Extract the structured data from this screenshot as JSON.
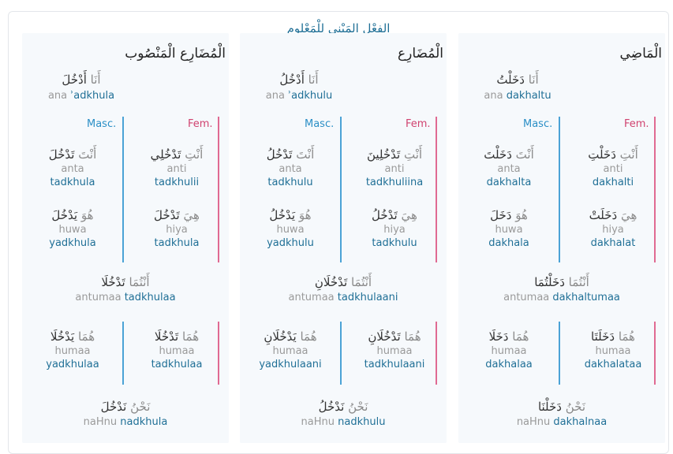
{
  "title": "الفِعْل المَبْنِي لِلْمَعْلوم",
  "labels": {
    "masc": "Masc.",
    "fem": "Fem."
  },
  "columns": [
    {
      "heading": "الْمَاضِي",
      "ana": {
        "pron_ar": "أَنَا",
        "verb_ar": "دَخَلْتُ",
        "pron_tr": "ana",
        "verb_tr": "dakhaltu"
      },
      "anta": {
        "pron_ar": "أَنْتَ",
        "verb_ar": "دَخَلْتَ",
        "pron_tr": "anta",
        "verb_tr": "dakhalta"
      },
      "anti": {
        "pron_ar": "أَنْتِ",
        "verb_ar": "دَخَلْتِ",
        "pron_tr": "anti",
        "verb_tr": "dakhalti"
      },
      "huwa": {
        "pron_ar": "هُوَ",
        "verb_ar": "دَخَلَ",
        "pron_tr": "huwa",
        "verb_tr": "dakhala"
      },
      "hiya": {
        "pron_ar": "هِيَ",
        "verb_ar": "دَخَلَتْ",
        "pron_tr": "hiya",
        "verb_tr": "dakhalat"
      },
      "antumaa": {
        "pron_ar": "أَنْتُمَا",
        "verb_ar": "دَخَلْتُمَا",
        "pron_tr": "antumaa",
        "verb_tr": "dakhaltumaa"
      },
      "humaa_m": {
        "pron_ar": "هُمَا",
        "verb_ar": "دَخَلَا",
        "pron_tr": "humaa",
        "verb_tr": "dakhalaa"
      },
      "humaa_f": {
        "pron_ar": "هُمَا",
        "verb_ar": "دَخَلَتَا",
        "pron_tr": "humaa",
        "verb_tr": "dakhalataa"
      },
      "nahnu": {
        "pron_ar": "نَحْنُ",
        "verb_ar": "دَخَلْنَا",
        "pron_tr": "naHnu",
        "verb_tr": "dakhalnaa"
      }
    },
    {
      "heading": "الْمُضَارِع",
      "ana": {
        "pron_ar": "أَنَا",
        "verb_ar": "أَدْخُلُ",
        "pron_tr": "ana",
        "verb_tr": "ʾadkhulu"
      },
      "anta": {
        "pron_ar": "أَنْتَ",
        "verb_ar": "تَدْخُلُ",
        "pron_tr": "anta",
        "verb_tr": "tadkhulu"
      },
      "anti": {
        "pron_ar": "أَنْتِ",
        "verb_ar": "تَدْخُلِينَ",
        "pron_tr": "anti",
        "verb_tr": "tadkhuliina"
      },
      "huwa": {
        "pron_ar": "هُوَ",
        "verb_ar": "يَدْخُلُ",
        "pron_tr": "huwa",
        "verb_tr": "yadkhulu"
      },
      "hiya": {
        "pron_ar": "هِيَ",
        "verb_ar": "تَدْخُلُ",
        "pron_tr": "hiya",
        "verb_tr": "tadkhulu"
      },
      "antumaa": {
        "pron_ar": "أَنْتُمَا",
        "verb_ar": "تَدْخُلَانِ",
        "pron_tr": "antumaa",
        "verb_tr": "tadkhulaani"
      },
      "humaa_m": {
        "pron_ar": "هُمَا",
        "verb_ar": "يَدْخُلَانِ",
        "pron_tr": "humaa",
        "verb_tr": "yadkhulaani"
      },
      "humaa_f": {
        "pron_ar": "هُمَا",
        "verb_ar": "تَدْخُلَانِ",
        "pron_tr": "humaa",
        "verb_tr": "tadkhulaani"
      },
      "nahnu": {
        "pron_ar": "نَحْنُ",
        "verb_ar": "نَدْخُلُ",
        "pron_tr": "naHnu",
        "verb_tr": "nadkhulu"
      }
    },
    {
      "heading": "الْمُضَارِع الْمَنْصُوب",
      "ana": {
        "pron_ar": "أَنَا",
        "verb_ar": "أَدْخُلَ",
        "pron_tr": "ana",
        "verb_tr": "ʾadkhula"
      },
      "anta": {
        "pron_ar": "أَنْتَ",
        "verb_ar": "تَدْخُلَ",
        "pron_tr": "anta",
        "verb_tr": "tadkhula"
      },
      "anti": {
        "pron_ar": "أَنْتِ",
        "verb_ar": "تَدْخُلِي",
        "pron_tr": "anti",
        "verb_tr": "tadkhulii"
      },
      "huwa": {
        "pron_ar": "هُوَ",
        "verb_ar": "يَدْخُلَ",
        "pron_tr": "huwa",
        "verb_tr": "yadkhula"
      },
      "hiya": {
        "pron_ar": "هِيَ",
        "verb_ar": "تَدْخُلَ",
        "pron_tr": "hiya",
        "verb_tr": "tadkhula"
      },
      "antumaa": {
        "pron_ar": "أَنْتُمَا",
        "verb_ar": "تَدْخُلَا",
        "pron_tr": "antumaa",
        "verb_tr": "tadkhulaa"
      },
      "humaa_m": {
        "pron_ar": "هُمَا",
        "verb_ar": "يَدْخُلَا",
        "pron_tr": "humaa",
        "verb_tr": "yadkhulaa"
      },
      "humaa_f": {
        "pron_ar": "هُمَا",
        "verb_ar": "تَدْخُلَا",
        "pron_tr": "humaa",
        "verb_tr": "tadkhulaa"
      },
      "nahnu": {
        "pron_ar": "نَحْنُ",
        "verb_ar": "نَدْخُلَ",
        "pron_tr": "naHnu",
        "verb_tr": "nadkhula"
      }
    }
  ]
}
